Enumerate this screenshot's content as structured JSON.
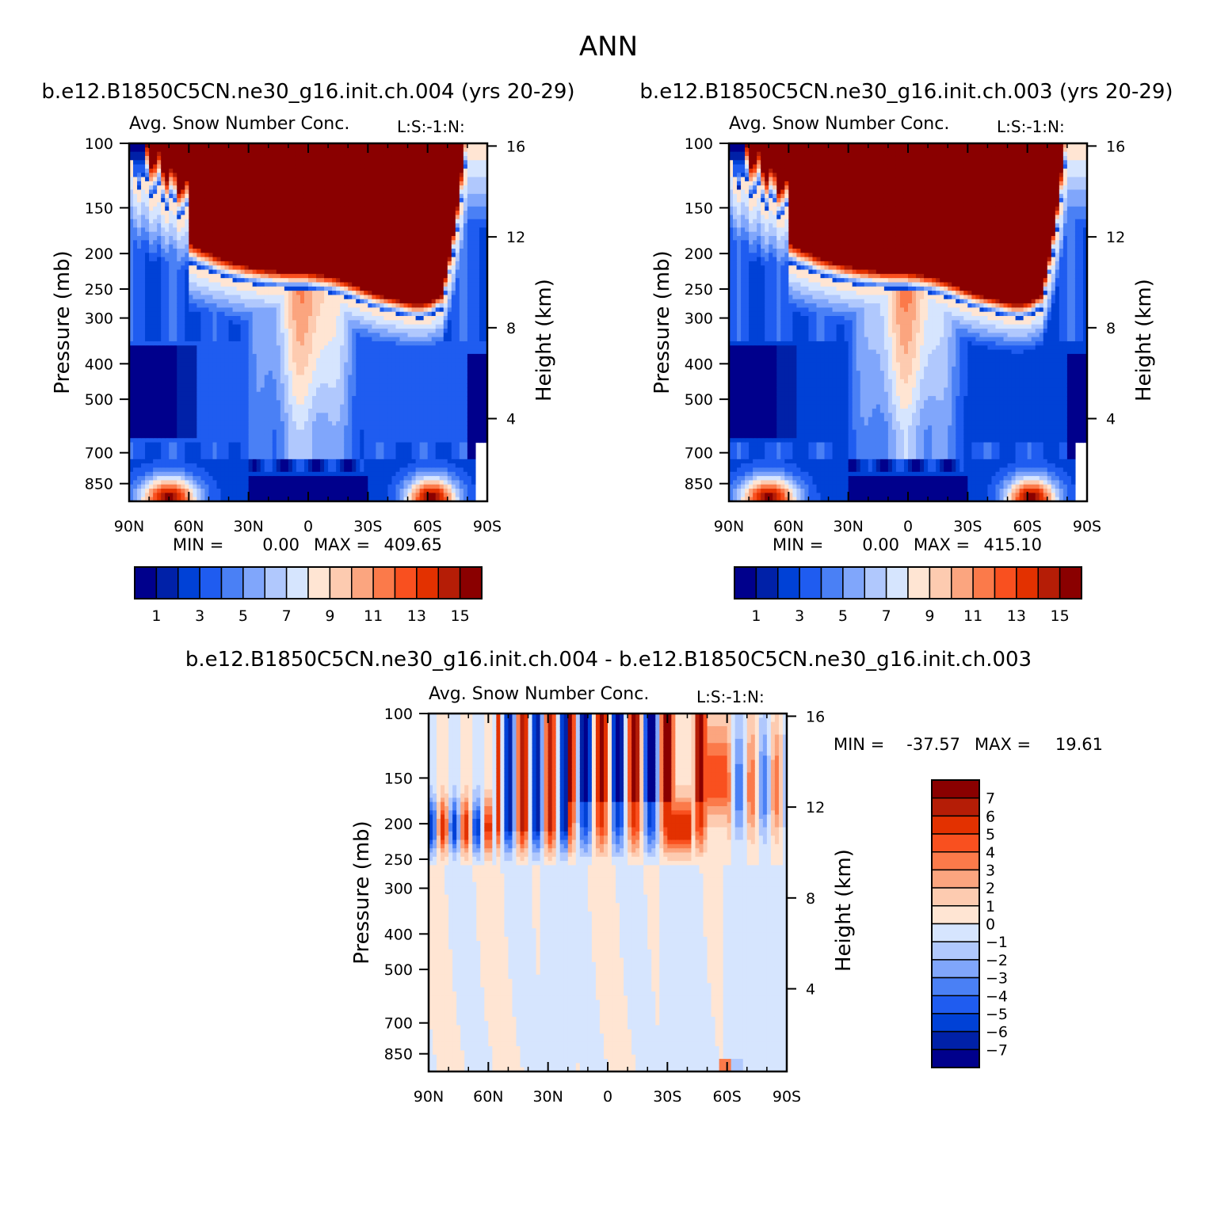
{
  "page_title": "ANN",
  "colors": {
    "seq": [
      "#00008c",
      "#0021a8",
      "#0041d6",
      "#1f5cf0",
      "#4a80f5",
      "#80a6fb",
      "#b0c8fd",
      "#d6e5fe",
      "#ffe5d3",
      "#fdcbb0",
      "#fba57f",
      "#fb7a4a",
      "#f9501f",
      "#e33100",
      "#b51d06",
      "#8a0000"
    ],
    "div": [
      "#00008c",
      "#0021a8",
      "#0041d6",
      "#1f5cf0",
      "#4a80f5",
      "#80a6fb",
      "#b0c8fd",
      "#d6e5fe",
      "#ffe5d3",
      "#fdcbb0",
      "#fba57f",
      "#fb7a4a",
      "#f9501f",
      "#e33100",
      "#b51d06",
      "#8a0000"
    ]
  },
  "chart_data": [
    {
      "type": "heatmap",
      "id": "p1",
      "case_title": "b.e12.B1850C5CN.ne30_g16.init.ch.004 (yrs 20-29)",
      "variable": "Avg. Snow Number Conc.",
      "tag": "L:S:-1:N:",
      "ylabel": "Pressure (mb)",
      "ylabel_right": "Height (km)",
      "x_ticks": [
        "90N",
        "60N",
        "30N",
        "0",
        "30S",
        "60S",
        "90S"
      ],
      "xlim": [
        90,
        -90
      ],
      "y_ticks": [
        100,
        150,
        200,
        250,
        300,
        400,
        500,
        700,
        850
      ],
      "ylim": [
        100,
        950
      ],
      "y_right_ticks": [
        4,
        8,
        12,
        16
      ],
      "min_label": "MIN =",
      "min_value": "0.00",
      "max_label": "MAX =",
      "max_value": "409.65",
      "colorbar_levels": [
        1,
        2,
        3,
        4,
        5,
        6,
        7,
        8,
        9,
        10,
        11,
        12,
        13,
        14,
        15
      ],
      "colorbar_labels": [
        "1",
        "3",
        "5",
        "7",
        "9",
        "11",
        "13",
        "15"
      ],
      "field": "snow"
    },
    {
      "type": "heatmap",
      "id": "p2",
      "case_title": "b.e12.B1850C5CN.ne30_g16.init.ch.003 (yrs 20-29)",
      "variable": "Avg. Snow Number Conc.",
      "tag": "L:S:-1:N:",
      "ylabel": "Pressure (mb)",
      "ylabel_right": "Height (km)",
      "x_ticks": [
        "90N",
        "60N",
        "30N",
        "0",
        "30S",
        "60S",
        "90S"
      ],
      "xlim": [
        90,
        -90
      ],
      "y_ticks": [
        100,
        150,
        200,
        250,
        300,
        400,
        500,
        700,
        850
      ],
      "ylim": [
        100,
        950
      ],
      "y_right_ticks": [
        4,
        8,
        12,
        16
      ],
      "min_label": "MIN =",
      "min_value": "0.00",
      "max_label": "MAX =",
      "max_value": "415.10",
      "colorbar_levels": [
        1,
        2,
        3,
        4,
        5,
        6,
        7,
        8,
        9,
        10,
        11,
        12,
        13,
        14,
        15
      ],
      "colorbar_labels": [
        "1",
        "3",
        "5",
        "7",
        "9",
        "11",
        "13",
        "15"
      ],
      "field": "snow"
    },
    {
      "type": "heatmap",
      "id": "p3",
      "case_title": "b.e12.B1850C5CN.ne30_g16.init.ch.004 - b.e12.B1850C5CN.ne30_g16.init.ch.003",
      "variable": "Avg. Snow Number Conc.",
      "tag": "L:S:-1:N:",
      "ylabel": "Pressure (mb)",
      "ylabel_right": "Height (km)",
      "x_ticks": [
        "90N",
        "60N",
        "30N",
        "0",
        "30S",
        "60S",
        "90S"
      ],
      "xlim": [
        90,
        -90
      ],
      "y_ticks": [
        100,
        150,
        200,
        250,
        300,
        400,
        500,
        700,
        850
      ],
      "ylim": [
        100,
        950
      ],
      "y_right_ticks": [
        4,
        8,
        12,
        16
      ],
      "min_label": "MIN =",
      "min_value": "-37.57",
      "max_label": "MAX =",
      "max_value": "19.61",
      "colorbar_levels": [
        -7,
        -6,
        -5,
        -4,
        -3,
        -2,
        -1,
        0,
        1,
        2,
        3,
        4,
        5,
        6,
        7
      ],
      "colorbar_labels": [
        "7",
        "6",
        "5",
        "4",
        "3",
        "2",
        "1",
        "0",
        "-1",
        "-2",
        "-3",
        "-4",
        "-5",
        "-6",
        "-7"
      ],
      "field": "diff"
    }
  ]
}
